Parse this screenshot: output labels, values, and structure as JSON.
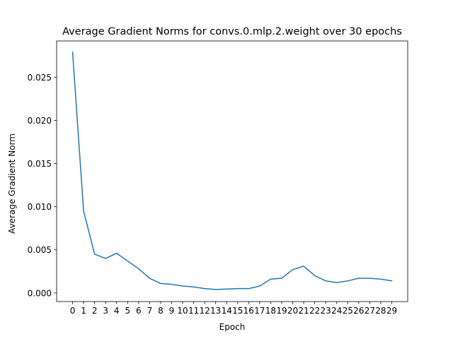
{
  "chart_data": {
    "type": "line",
    "title": "Average Gradient Norms for convs.0.mlp.2.weight over 30 epochs",
    "xlabel": "Epoch",
    "ylabel": "Average Gradient Norm",
    "x": [
      0,
      1,
      2,
      3,
      4,
      5,
      6,
      7,
      8,
      9,
      10,
      11,
      12,
      13,
      14,
      15,
      16,
      17,
      18,
      19,
      20,
      21,
      22,
      23,
      24,
      25,
      26,
      27,
      28,
      29
    ],
    "xticks": [
      "0",
      "1",
      "2",
      "3",
      "4",
      "5",
      "6",
      "7",
      "8",
      "9",
      "10",
      "11",
      "12",
      "13",
      "14",
      "15",
      "16",
      "17",
      "18",
      "19",
      "20",
      "21",
      "22",
      "23",
      "24",
      "25",
      "26",
      "27",
      "28",
      "29"
    ],
    "series": [
      {
        "values": [
          0.0279,
          0.0095,
          0.0045,
          0.004,
          0.0046,
          0.0037,
          0.0028,
          0.0017,
          0.0011,
          0.001,
          0.0008,
          0.0007,
          0.0005,
          0.0004,
          0.00045,
          0.0005,
          0.0005,
          0.0008,
          0.0016,
          0.0017,
          0.0027,
          0.0031,
          0.002,
          0.0014,
          0.0012,
          0.0014,
          0.0017,
          0.0017,
          0.0016,
          0.0014
        ],
        "color": "#1f77b4"
      }
    ],
    "yticks": [
      "0.000",
      "0.005",
      "0.010",
      "0.015",
      "0.020",
      "0.025"
    ],
    "ytick_values": [
      0,
      0.005,
      0.01,
      0.015,
      0.02,
      0.025
    ],
    "ylim": [
      -0.001,
      0.0292
    ],
    "xlim": [
      -1.45,
      30.45
    ],
    "grid": false,
    "legend": "none"
  }
}
